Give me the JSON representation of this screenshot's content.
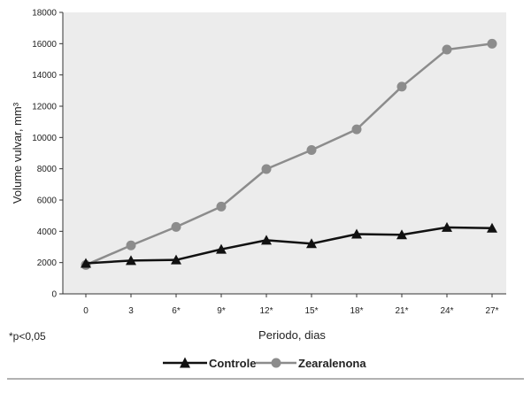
{
  "chart_data": {
    "type": "line",
    "title": "",
    "xlabel": "Periodo,  dias",
    "ylabel": "Volume vulvar, mm³",
    "categories": [
      "0",
      "3",
      "6*",
      "9*",
      "12*",
      "15*",
      "18*",
      "21*",
      "24*",
      "27*"
    ],
    "ylim": [
      0,
      18000
    ],
    "y_ticks": [
      "0",
      "2000",
      "4000",
      "6000",
      "8000",
      "10000",
      "12000",
      "14000",
      "16000",
      "18000"
    ],
    "y_tick_values": [
      0,
      2000,
      4000,
      6000,
      8000,
      10000,
      12000,
      14000,
      16000,
      18000
    ],
    "grid": false,
    "legend_position": "bottom",
    "series": [
      {
        "name": "Controle",
        "marker": "triangle",
        "color": "#111111",
        "values": [
          1950,
          2130,
          2170,
          2850,
          3430,
          3210,
          3820,
          3780,
          4250,
          4200
        ]
      },
      {
        "name": "Zearalenona",
        "marker": "circle",
        "color": "#8c8c8c",
        "values": [
          1850,
          3100,
          4280,
          5580,
          7980,
          9200,
          10520,
          13250,
          15620,
          16000
        ]
      }
    ],
    "annotation": "*p<0,05",
    "plot_background": "#ececec",
    "rule_color": "#666666"
  }
}
